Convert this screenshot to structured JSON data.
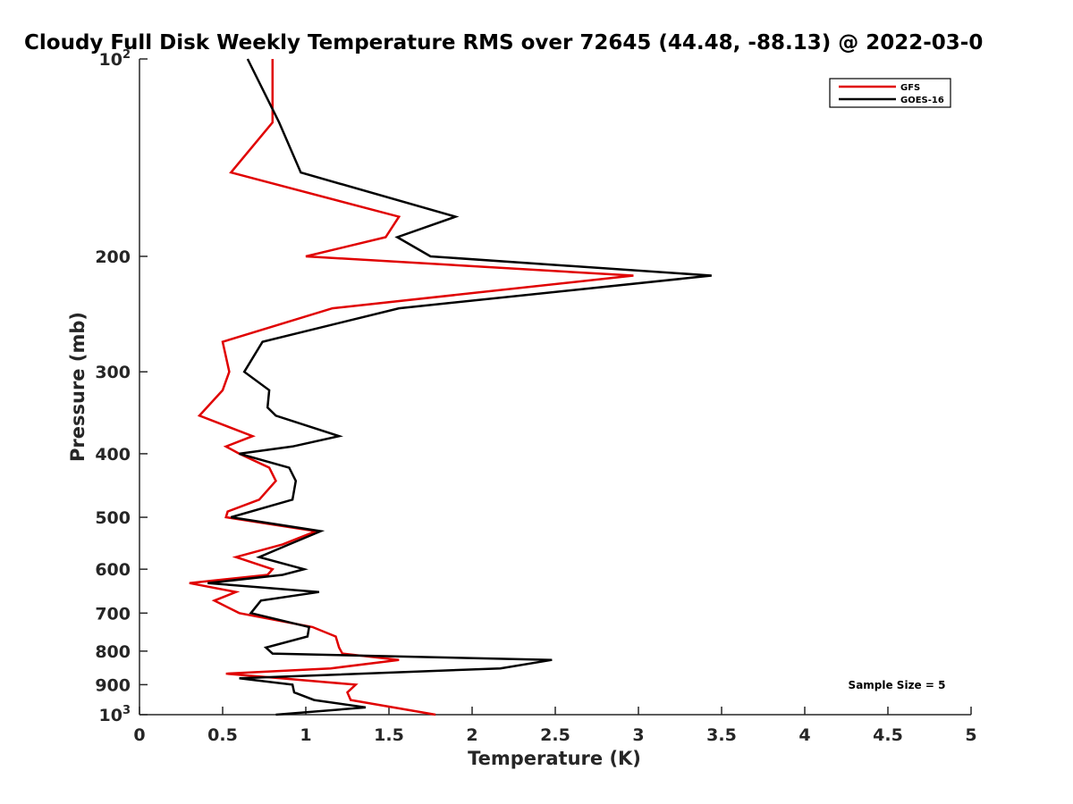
{
  "chart_data": {
    "type": "line",
    "title": "Cloudy Full Disk Weekly Temperature RMS over 72645 (44.48, -88.13) @ 2022-03-0",
    "xlabel": "Temperature (K)",
    "ylabel": "Pressure (mb)",
    "xlim": [
      0,
      5
    ],
    "ylim": [
      100,
      1000
    ],
    "y_scale": "log",
    "y_reversed": true,
    "x_ticks": [
      "0",
      "0.5",
      "1",
      "1.5",
      "2",
      "2.5",
      "3",
      "3.5",
      "4",
      "4.5",
      "5"
    ],
    "x_tick_values": [
      0,
      0.5,
      1,
      1.5,
      2,
      2.5,
      3,
      3.5,
      4,
      4.5,
      5
    ],
    "y_ticks": [
      {
        "value": 100,
        "label": "10",
        "sup": "2"
      },
      {
        "value": 200,
        "label": "200",
        "sup": ""
      },
      {
        "value": 300,
        "label": "300",
        "sup": ""
      },
      {
        "value": 400,
        "label": "400",
        "sup": ""
      },
      {
        "value": 500,
        "label": "500",
        "sup": ""
      },
      {
        "value": 600,
        "label": "600",
        "sup": ""
      },
      {
        "value": 700,
        "label": "700",
        "sup": ""
      },
      {
        "value": 800,
        "label": "800",
        "sup": ""
      },
      {
        "value": 900,
        "label": "900",
        "sup": ""
      },
      {
        "value": 1000,
        "label": "10",
        "sup": "3"
      }
    ],
    "grid": false,
    "legend_position": "top-right",
    "annotation": "Sample Size = 5",
    "series": [
      {
        "name": "GFS",
        "color": "#e00000",
        "points": [
          [
            0.8,
            100
          ],
          [
            0.8,
            125
          ],
          [
            0.55,
            149
          ],
          [
            1.56,
            174
          ],
          [
            1.48,
            187
          ],
          [
            1.0,
            200
          ],
          [
            2.97,
            214
          ],
          [
            1.16,
            240
          ],
          [
            0.5,
            270
          ],
          [
            0.54,
            300
          ],
          [
            0.5,
            320
          ],
          [
            0.36,
            350
          ],
          [
            0.68,
            376
          ],
          [
            0.52,
            390
          ],
          [
            0.6,
            400
          ],
          [
            0.78,
            420
          ],
          [
            0.82,
            440
          ],
          [
            0.72,
            470
          ],
          [
            0.53,
            490
          ],
          [
            0.52,
            500
          ],
          [
            1.06,
            525
          ],
          [
            0.86,
            550
          ],
          [
            0.58,
            575
          ],
          [
            0.8,
            600
          ],
          [
            0.77,
            612
          ],
          [
            0.3,
            630
          ],
          [
            0.58,
            650
          ],
          [
            0.45,
            670
          ],
          [
            0.6,
            700
          ],
          [
            1.04,
            735
          ],
          [
            1.18,
            760
          ],
          [
            1.2,
            790
          ],
          [
            1.22,
            807
          ],
          [
            1.56,
            825
          ],
          [
            1.15,
            850
          ],
          [
            0.52,
            866
          ],
          [
            0.85,
            880
          ],
          [
            1.3,
            900
          ],
          [
            1.25,
            925
          ],
          [
            1.27,
            950
          ],
          [
            1.78,
            1000
          ]
        ]
      },
      {
        "name": "GOES-16",
        "color": "#000000",
        "points": [
          [
            0.65,
            100
          ],
          [
            0.84,
            125
          ],
          [
            0.97,
            149
          ],
          [
            1.9,
            174
          ],
          [
            1.55,
            187
          ],
          [
            1.75,
            200
          ],
          [
            3.44,
            214
          ],
          [
            1.56,
            240
          ],
          [
            0.74,
            270
          ],
          [
            0.63,
            300
          ],
          [
            0.78,
            320
          ],
          [
            0.77,
            340
          ],
          [
            0.82,
            350
          ],
          [
            1.2,
            376
          ],
          [
            0.92,
            390
          ],
          [
            0.6,
            400
          ],
          [
            0.9,
            420
          ],
          [
            0.94,
            440
          ],
          [
            0.92,
            470
          ],
          [
            0.55,
            500
          ],
          [
            1.09,
            525
          ],
          [
            0.9,
            550
          ],
          [
            0.72,
            575
          ],
          [
            0.99,
            600
          ],
          [
            0.86,
            612
          ],
          [
            0.41,
            630
          ],
          [
            1.08,
            650
          ],
          [
            0.73,
            670
          ],
          [
            0.67,
            700
          ],
          [
            1.02,
            735
          ],
          [
            1.01,
            760
          ],
          [
            0.76,
            790
          ],
          [
            0.8,
            807
          ],
          [
            2.48,
            825
          ],
          [
            2.17,
            850
          ],
          [
            0.6,
            880
          ],
          [
            0.92,
            900
          ],
          [
            0.93,
            925
          ],
          [
            1.05,
            950
          ],
          [
            1.36,
            975
          ],
          [
            0.82,
            1000
          ]
        ]
      }
    ]
  }
}
